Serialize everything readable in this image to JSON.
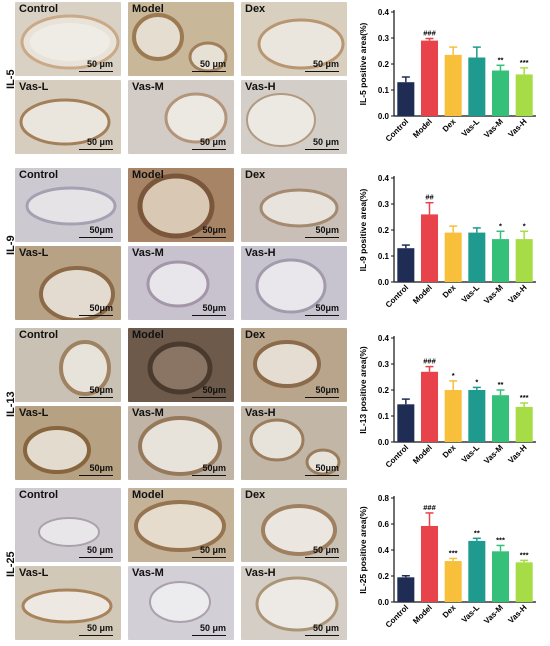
{
  "scale_label": "50 μm",
  "rows": [
    {
      "marker": "IL-5",
      "tiles": [
        "Control",
        "Model",
        "Dex",
        "Vas-L",
        "Vas-M",
        "Vas-H"
      ],
      "scale_labels": [
        "50 μm",
        "50 μm",
        "50 μm",
        "50 μm",
        "50 μm",
        "50 μm"
      ]
    },
    {
      "marker": "IL-9",
      "tiles": [
        "Control",
        "Model",
        "Dex",
        "Vas-L",
        "Vas-M",
        "Vas-H"
      ],
      "scale_labels": [
        "50μm",
        "50μm",
        "50μm",
        "50μm",
        "50μm",
        "50μm"
      ]
    },
    {
      "marker": "IL-13",
      "tiles": [
        "Control",
        "Model",
        "Dex",
        "Vas-L",
        "Vas-M",
        "Vas-H"
      ],
      "scale_labels": [
        "50μm",
        "50μm",
        "50μm",
        "50μm",
        "50μm",
        "50μm"
      ]
    },
    {
      "marker": "IL-25",
      "tiles": [
        "Control",
        "Model",
        "Dex",
        "Vas-L",
        "Vas-M",
        "Vas-H"
      ],
      "scale_labels": [
        "50 μm",
        "50 μm",
        "50 μm",
        "50 μm",
        "50 μm",
        "50 μm"
      ]
    }
  ],
  "colors": {
    "Control": "#1f2d55",
    "Model": "#e8434a",
    "Dex": "#f8bf3a",
    "Vas-L": "#1f9a8f",
    "Vas-M": "#35c07a",
    "Vas-H": "#a6dc46"
  },
  "chart_data": [
    {
      "type": "bar",
      "categories": [
        "Control",
        "Model",
        "Dex",
        "Vas-L",
        "Vas-M",
        "Vas-H"
      ],
      "values": [
        0.13,
        0.29,
        0.235,
        0.225,
        0.175,
        0.16
      ],
      "errors": [
        0.02,
        0.008,
        0.03,
        0.04,
        0.02,
        0.025
      ],
      "annotations": [
        "",
        "###",
        "",
        "",
        "**",
        "***"
      ],
      "ylabel": "IL-5 positive area(%)",
      "ylim": [
        0,
        0.4
      ],
      "yticks": [
        "0.0",
        "0.1",
        "0.2",
        "0.3",
        "0.4"
      ]
    },
    {
      "type": "bar",
      "categories": [
        "Control",
        "Model",
        "Dex",
        "Vas-L",
        "Vas-M",
        "Vas-H"
      ],
      "values": [
        0.13,
        0.26,
        0.19,
        0.19,
        0.165,
        0.165
      ],
      "errors": [
        0.012,
        0.045,
        0.025,
        0.018,
        0.03,
        0.03
      ],
      "annotations": [
        "",
        "##",
        "",
        "",
        "*",
        "*"
      ],
      "ylabel": "IL-9 positive area(%)",
      "ylim": [
        0,
        0.4
      ],
      "yticks": [
        "0.0",
        "0.1",
        "0.2",
        "0.3",
        "0.4"
      ]
    },
    {
      "type": "bar",
      "categories": [
        "Control",
        "Model",
        "Dex",
        "Vas-L",
        "Vas-M",
        "Vas-H"
      ],
      "values": [
        0.145,
        0.27,
        0.2,
        0.2,
        0.18,
        0.135
      ],
      "errors": [
        0.02,
        0.02,
        0.035,
        0.01,
        0.02,
        0.015
      ],
      "annotations": [
        "",
        "###",
        "*",
        "*",
        "**",
        "***"
      ],
      "ylabel": "IL-13 positive area(%)",
      "ylim": [
        0,
        0.4
      ],
      "yticks": [
        "0.0",
        "0.1",
        "0.2",
        "0.3",
        "0.4"
      ]
    },
    {
      "type": "bar",
      "categories": [
        "Control",
        "Model",
        "Dex",
        "Vas-L",
        "Vas-M",
        "Vas-H"
      ],
      "values": [
        0.19,
        0.585,
        0.315,
        0.47,
        0.39,
        0.305
      ],
      "errors": [
        0.012,
        0.1,
        0.02,
        0.02,
        0.045,
        0.015
      ],
      "annotations": [
        "",
        "###",
        "***",
        "**",
        "***",
        "***"
      ],
      "ylabel": "IL-25 positive area(%)",
      "ylim": [
        0,
        0.8
      ],
      "yticks": [
        "0.0",
        "0.2",
        "0.4",
        "0.6",
        "0.8"
      ]
    }
  ]
}
